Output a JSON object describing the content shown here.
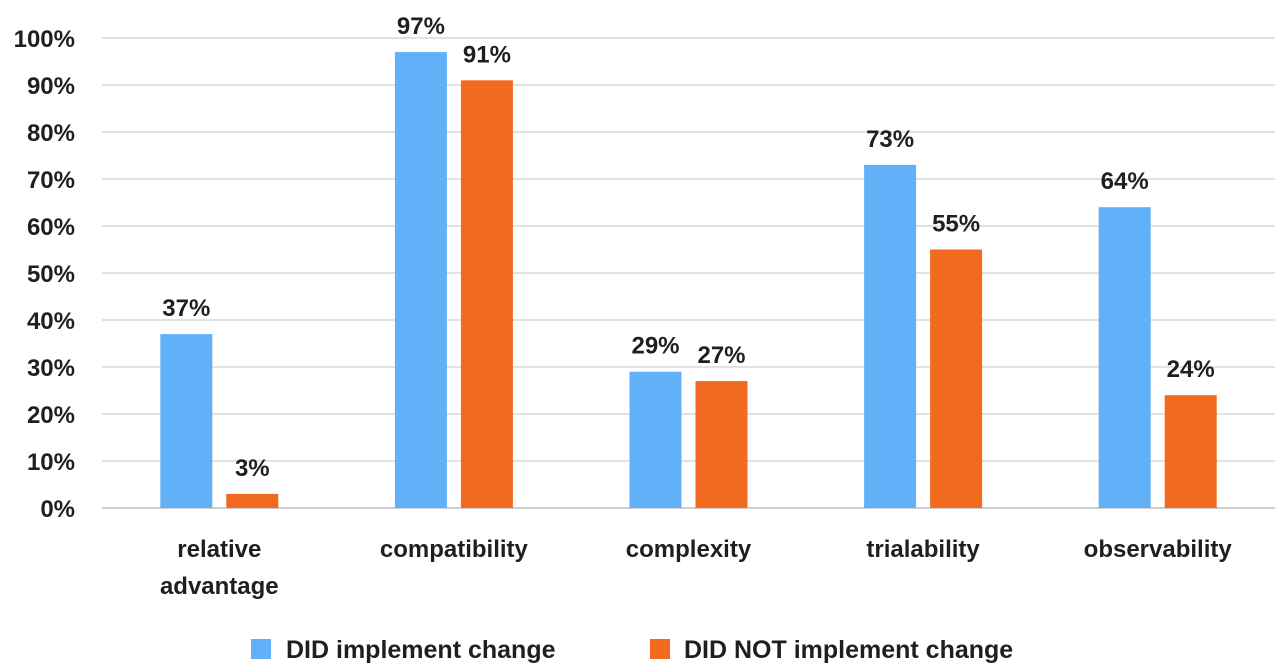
{
  "chart_data": {
    "type": "bar",
    "title": "",
    "xlabel": "",
    "ylabel": "",
    "ylim": [
      0,
      100
    ],
    "y_tick_step": 10,
    "y_tick_suffix": "%",
    "grid": true,
    "legend_position": "bottom",
    "categories": [
      "relative advantage",
      "compatibility",
      "complexity",
      "trialability",
      "observability"
    ],
    "category_lines": [
      [
        "relative",
        "advantage"
      ],
      [
        "compatibility"
      ],
      [
        "complexity"
      ],
      [
        "trialability"
      ],
      [
        "observability"
      ]
    ],
    "series": [
      {
        "name": "DID implement change",
        "color": "#62b1f8",
        "values": [
          37,
          97,
          29,
          73,
          64
        ]
      },
      {
        "name": "DID NOT implement change",
        "color": "#f26a1f",
        "values": [
          3,
          91,
          27,
          55,
          24
        ]
      }
    ],
    "data_label_suffix": "%"
  }
}
